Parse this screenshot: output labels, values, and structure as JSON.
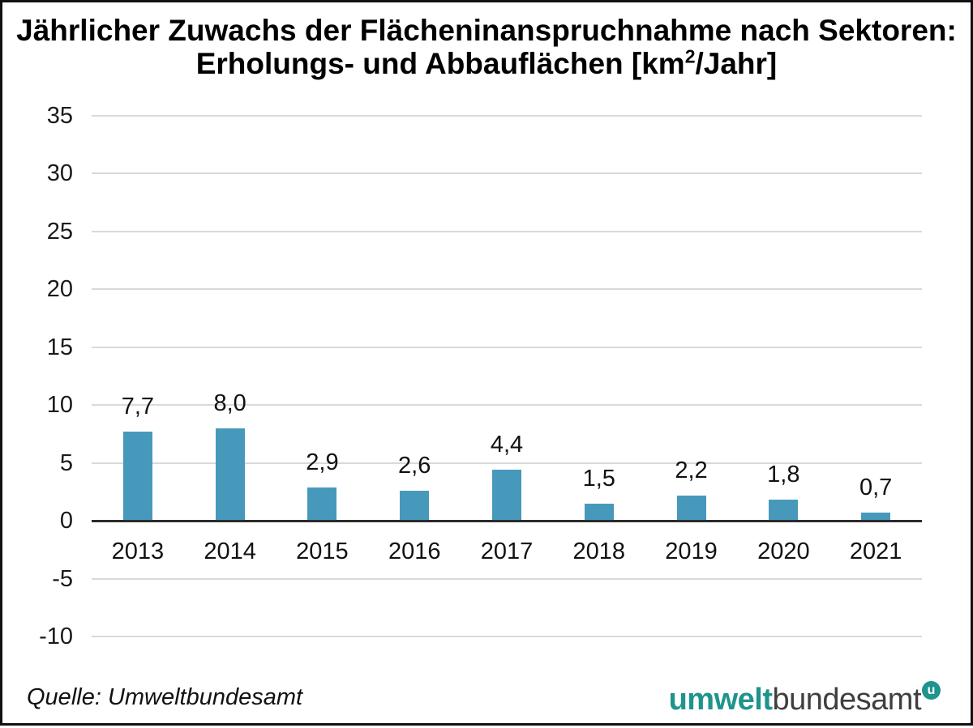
{
  "title": {
    "line1": "Jährlicher Zuwachs der Flächeninanspruchnahme nach Sektoren:",
    "line2_prefix": "Erholungs- und Abbauflächen [km",
    "line2_superscript": "2",
    "line2_suffix": "/Jahr]"
  },
  "chart_data": {
    "type": "bar",
    "title": "Jährlicher Zuwachs der Flächeninanspruchnahme nach Sektoren: Erholungs- und Abbauflächen [km²/Jahr]",
    "categories": [
      "2013",
      "2014",
      "2015",
      "2016",
      "2017",
      "2018",
      "2019",
      "2020",
      "2021"
    ],
    "values": [
      7.7,
      8.0,
      2.9,
      2.6,
      4.4,
      1.5,
      2.2,
      1.8,
      0.7
    ],
    "value_labels": [
      "7,7",
      "8,0",
      "2,9",
      "2,6",
      "4,4",
      "1,5",
      "2,2",
      "1,8",
      "0,7"
    ],
    "xlabel": "",
    "ylabel": "",
    "ylim": [
      -10,
      35
    ],
    "yticks": [
      35,
      30,
      25,
      20,
      15,
      10,
      5,
      0,
      -5,
      -10
    ],
    "grid": true,
    "legend_position": "none",
    "bar_color": "#4799bb"
  },
  "footer": {
    "source": "Quelle: Umweltbundesamt",
    "logo": {
      "part1": "umwelt",
      "part2": "bundesamt",
      "badge_letter": "u"
    }
  },
  "colors": {
    "bar": "#4799bb",
    "gridline": "#d9d9d9",
    "zero_line": "#2b2b2b",
    "text": "#1a1a1a",
    "logo_teal": "#1e948c",
    "logo_gray": "#3f3f3f"
  }
}
